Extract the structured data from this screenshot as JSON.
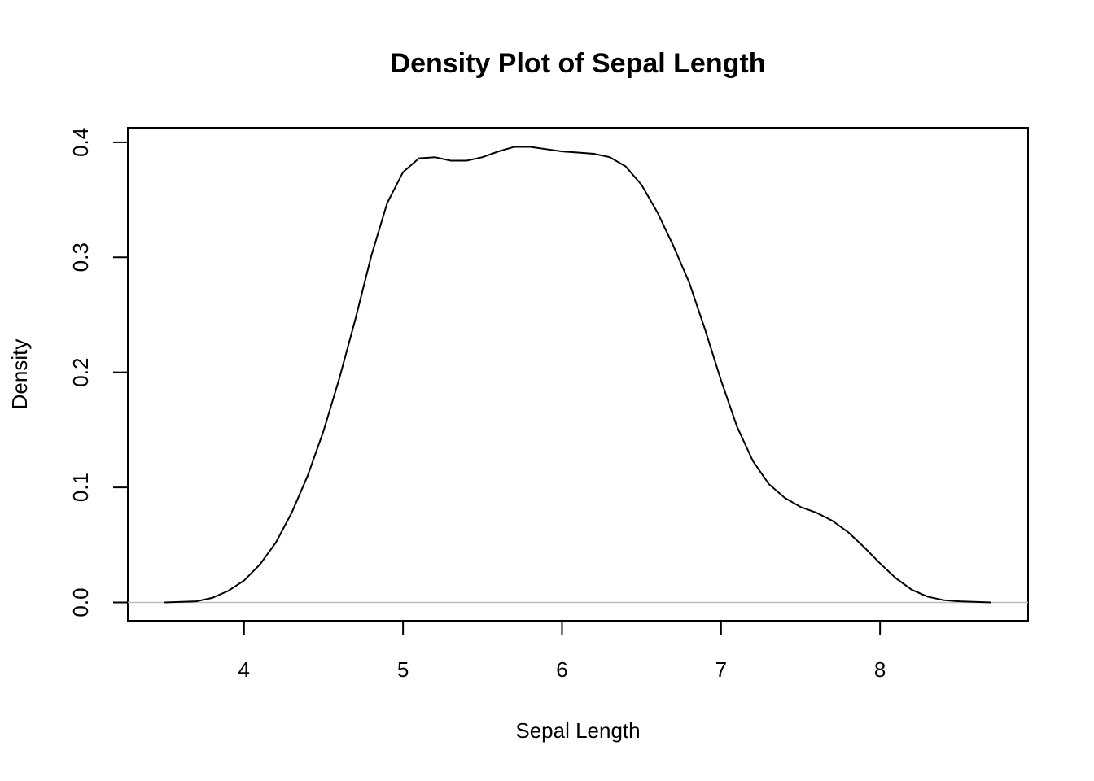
{
  "chart_data": {
    "type": "line",
    "title": "Density Plot of Sepal Length",
    "xlabel": "Sepal Length",
    "ylabel": "Density",
    "x": [
      3.5,
      3.7,
      3.8,
      3.9,
      4.0,
      4.1,
      4.2,
      4.3,
      4.4,
      4.5,
      4.6,
      4.7,
      4.8,
      4.9,
      5.0,
      5.1,
      5.2,
      5.3,
      5.4,
      5.5,
      5.6,
      5.7,
      5.8,
      5.9,
      6.0,
      6.1,
      6.2,
      6.3,
      6.4,
      6.5,
      6.6,
      6.7,
      6.8,
      6.9,
      7.0,
      7.1,
      7.2,
      7.3,
      7.4,
      7.5,
      7.6,
      7.7,
      7.8,
      7.9,
      8.0,
      8.1,
      8.2,
      8.3,
      8.4,
      8.5,
      8.7
    ],
    "values": [
      0.0,
      0.001,
      0.004,
      0.01,
      0.019,
      0.033,
      0.052,
      0.078,
      0.11,
      0.149,
      0.195,
      0.246,
      0.301,
      0.347,
      0.374,
      0.386,
      0.387,
      0.384,
      0.384,
      0.387,
      0.392,
      0.396,
      0.396,
      0.394,
      0.392,
      0.391,
      0.39,
      0.387,
      0.379,
      0.363,
      0.339,
      0.31,
      0.278,
      0.237,
      0.193,
      0.153,
      0.123,
      0.103,
      0.091,
      0.083,
      0.078,
      0.071,
      0.061,
      0.048,
      0.034,
      0.021,
      0.011,
      0.005,
      0.002,
      0.001,
      0.0
    ],
    "color": "#000000",
    "xlim": [
      3.269,
      8.931
    ],
    "ylim": [
      -0.0159,
      0.4126
    ],
    "xticks": [
      4,
      5,
      6,
      7,
      8
    ],
    "yticks": [
      {
        "value": 0,
        "label": "0.0"
      },
      0.1,
      0.2,
      0.3,
      0.4
    ],
    "hline": 0,
    "hline_color": "#bebebe"
  }
}
